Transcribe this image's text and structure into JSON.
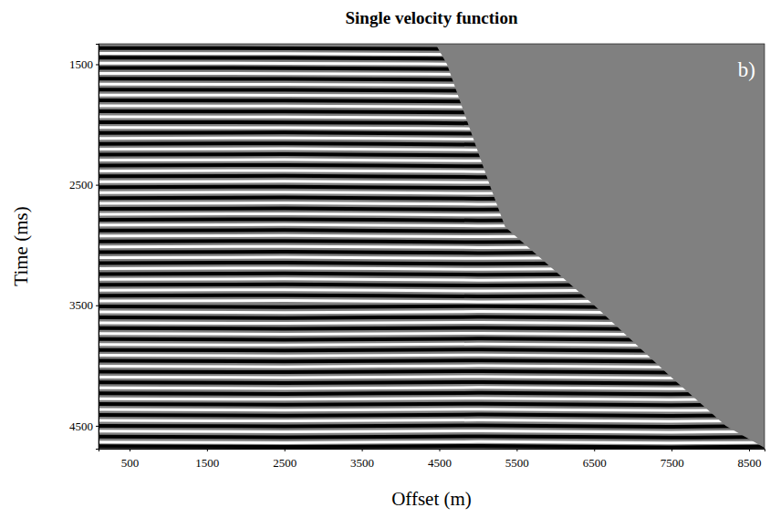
{
  "chart_data": {
    "type": "seismic_gather",
    "title": "Single velocity function",
    "x_label": "Offset (m)",
    "y_label": "Time (ms)",
    "annotations": [
      {
        "text": "b)"
      }
    ],
    "xlim": [
      100,
      8700
    ],
    "ylim": [
      1330,
      4690
    ],
    "xticks": [
      500,
      1500,
      2500,
      3500,
      4500,
      5500,
      6500,
      7500,
      8500
    ],
    "yticks": [
      1500,
      2500,
      3500,
      4500
    ],
    "x": [
      100,
      2500,
      5000,
      7500,
      8700
    ],
    "mute": {
      "color": "#808080",
      "x": [
        4450,
        4600,
        5150,
        5350,
        6500,
        7500,
        8200,
        8720
      ],
      "values": [
        1330,
        1500,
        2500,
        2850,
        3500,
        4100,
        4500,
        4690
      ]
    },
    "series": [
      {
        "color": "#000000",
        "values": [
          1365,
          1367,
          1375,
          1387,
          1395
        ]
      },
      {
        "color": "#ffffff",
        "values": [
          1410,
          1412,
          1420,
          1432,
          1440
        ]
      },
      {
        "color": "#000000",
        "values": [
          1445,
          1447,
          1455,
          1467,
          1475
        ]
      },
      {
        "color": "#ffffff",
        "values": [
          1490,
          1492,
          1500,
          1512,
          1520
        ]
      },
      {
        "color": "#000000",
        "values": [
          1530,
          1532,
          1540,
          1552,
          1560
        ]
      },
      {
        "color": "#ffffff",
        "values": [
          1575,
          1577,
          1585,
          1597,
          1605
        ]
      },
      {
        "color": "#000000",
        "values": [
          1620,
          1622,
          1630,
          1642,
          1650
        ]
      },
      {
        "color": "#ffffff",
        "values": [
          1665,
          1667,
          1675,
          1687,
          1695
        ]
      },
      {
        "color": "#000000",
        "values": [
          1710,
          1712,
          1720,
          1732,
          1740
        ]
      },
      {
        "color": "#ffffff",
        "values": [
          1755,
          1757,
          1765,
          1777,
          1785
        ]
      },
      {
        "color": "#000000",
        "values": [
          1800,
          1802,
          1810,
          1822,
          1830
        ]
      },
      {
        "color": "#ffffff",
        "values": [
          1845,
          1847,
          1855,
          1867,
          1875
        ]
      },
      {
        "color": "#000000",
        "values": [
          1890,
          1892,
          1900,
          1912,
          1920
        ]
      },
      {
        "color": "#ffffff",
        "values": [
          1935,
          1937,
          1945,
          1957,
          1965
        ]
      },
      {
        "color": "#000000",
        "values": [
          1980,
          1982,
          1990,
          2002,
          2010
        ]
      },
      {
        "color": "#ffffff",
        "values": [
          2025,
          2027,
          2035,
          2047,
          2055
        ]
      },
      {
        "color": "#000000",
        "values": [
          2070,
          2066,
          2076,
          2068,
          2074
        ]
      },
      {
        "color": "#ffffff",
        "values": [
          2115,
          2111,
          2121,
          2113,
          2119
        ]
      },
      {
        "color": "#000000",
        "values": [
          2160,
          2156,
          2166,
          2158,
          2164
        ]
      },
      {
        "color": "#ffffff",
        "values": [
          2205,
          2201,
          2211,
          2203,
          2209
        ]
      },
      {
        "color": "#000000",
        "values": [
          2250,
          2246,
          2256,
          2248,
          2254
        ]
      },
      {
        "color": "#ffffff",
        "values": [
          2295,
          2291,
          2301,
          2293,
          2299
        ]
      },
      {
        "color": "#000000",
        "values": [
          2340,
          2336,
          2346,
          2338,
          2344
        ]
      },
      {
        "color": "#ffffff",
        "values": [
          2385,
          2381,
          2391,
          2383,
          2389
        ]
      },
      {
        "color": "#000000",
        "values": [
          2430,
          2426,
          2436,
          2428,
          2434
        ]
      },
      {
        "color": "#ffffff",
        "values": [
          2475,
          2471,
          2481,
          2473,
          2479
        ]
      },
      {
        "color": "#000000",
        "values": [
          2520,
          2516,
          2526,
          2518,
          2524
        ]
      },
      {
        "color": "#ffffff",
        "values": [
          2565,
          2561,
          2571,
          2563,
          2569
        ]
      },
      {
        "color": "#000000",
        "values": [
          2610,
          2606,
          2616,
          2608,
          2614
        ]
      },
      {
        "color": "#ffffff",
        "values": [
          2655,
          2651,
          2661,
          2653,
          2659
        ]
      },
      {
        "color": "#000000",
        "values": [
          2700,
          2696,
          2706,
          2698,
          2704
        ]
      },
      {
        "color": "#ffffff",
        "values": [
          2745,
          2741,
          2751,
          2743,
          2749
        ]
      },
      {
        "color": "#000000",
        "values": [
          2790,
          2786,
          2796,
          2788,
          2794
        ]
      },
      {
        "color": "#ffffff",
        "values": [
          2835,
          2831,
          2841,
          2833,
          2839
        ]
      },
      {
        "color": "#000000",
        "values": [
          2880,
          2876,
          2886,
          2878,
          2884
        ]
      },
      {
        "color": "#ffffff",
        "values": [
          2925,
          2921,
          2931,
          2923,
          2929
        ]
      },
      {
        "color": "#000000",
        "values": [
          2970,
          2966,
          2976,
          2968,
          2974
        ]
      },
      {
        "color": "#ffffff",
        "values": [
          3015,
          3011,
          3021,
          3013,
          3019
        ]
      },
      {
        "color": "#000000",
        "values": [
          3060,
          3056,
          3066,
          3058,
          3064
        ]
      },
      {
        "color": "#ffffff",
        "values": [
          3105,
          3101,
          3111,
          3103,
          3109
        ]
      },
      {
        "color": "#000000",
        "values": [
          3150,
          3146,
          3156,
          3148,
          3154
        ]
      },
      {
        "color": "#ffffff",
        "values": [
          3195,
          3191,
          3201,
          3193,
          3199
        ]
      },
      {
        "color": "#000000",
        "values": [
          3240,
          3236,
          3246,
          3238,
          3244
        ]
      },
      {
        "color": "#ffffff",
        "values": [
          3285,
          3281,
          3291,
          3283,
          3289
        ]
      },
      {
        "color": "#000000",
        "values": [
          3330,
          3326,
          3336,
          3328,
          3334
        ]
      },
      {
        "color": "#ffffff",
        "values": [
          3375,
          3371,
          3381,
          3373,
          3379
        ]
      },
      {
        "color": "#000000",
        "values": [
          3420,
          3416,
          3426,
          3418,
          3424
        ]
      },
      {
        "color": "#ffffff",
        "values": [
          3465,
          3461,
          3471,
          3463,
          3469
        ]
      },
      {
        "color": "#000000",
        "values": [
          3510,
          3515,
          3507,
          3518,
          3512
        ]
      },
      {
        "color": "#ffffff",
        "values": [
          3555,
          3560,
          3552,
          3563,
          3557
        ]
      },
      {
        "color": "#000000",
        "values": [
          3600,
          3605,
          3597,
          3608,
          3602
        ]
      },
      {
        "color": "#ffffff",
        "values": [
          3645,
          3650,
          3642,
          3653,
          3647
        ]
      },
      {
        "color": "#000000",
        "values": [
          3690,
          3695,
          3687,
          3698,
          3692
        ]
      },
      {
        "color": "#ffffff",
        "values": [
          3735,
          3740,
          3732,
          3743,
          3737
        ]
      },
      {
        "color": "#000000",
        "values": [
          3780,
          3785,
          3777,
          3788,
          3782
        ]
      },
      {
        "color": "#ffffff",
        "values": [
          3825,
          3830,
          3822,
          3833,
          3827
        ]
      },
      {
        "color": "#000000",
        "values": [
          3870,
          3875,
          3867,
          3878,
          3872
        ]
      },
      {
        "color": "#ffffff",
        "values": [
          3915,
          3920,
          3912,
          3923,
          3917
        ]
      },
      {
        "color": "#000000",
        "values": [
          3960,
          3965,
          3957,
          3968,
          3962
        ]
      },
      {
        "color": "#ffffff",
        "values": [
          4005,
          4010,
          4002,
          4013,
          4007
        ]
      },
      {
        "color": "#000000",
        "values": [
          4050,
          4055,
          4047,
          4058,
          4052
        ]
      },
      {
        "color": "#ffffff",
        "values": [
          4095,
          4100,
          4092,
          4103,
          4097
        ]
      },
      {
        "color": "#000000",
        "values": [
          4140,
          4145,
          4137,
          4148,
          4142
        ]
      },
      {
        "color": "#ffffff",
        "values": [
          4185,
          4190,
          4182,
          4193,
          4187
        ]
      },
      {
        "color": "#000000",
        "values": [
          4230,
          4235,
          4227,
          4238,
          4232
        ]
      },
      {
        "color": "#ffffff",
        "values": [
          4275,
          4280,
          4272,
          4283,
          4277
        ]
      },
      {
        "color": "#000000",
        "values": [
          4320,
          4325,
          4317,
          4328,
          4322
        ]
      },
      {
        "color": "#ffffff",
        "values": [
          4365,
          4370,
          4362,
          4373,
          4367
        ]
      },
      {
        "color": "#000000",
        "values": [
          4410,
          4415,
          4407,
          4418,
          4412
        ]
      },
      {
        "color": "#ffffff",
        "values": [
          4455,
          4460,
          4452,
          4463,
          4457
        ]
      },
      {
        "color": "#000000",
        "values": [
          4500,
          4505,
          4497,
          4508,
          4502
        ]
      },
      {
        "color": "#ffffff",
        "values": [
          4545,
          4550,
          4542,
          4553,
          4547
        ]
      },
      {
        "color": "#000000",
        "values": [
          4590,
          4595,
          4587,
          4598,
          4592
        ]
      },
      {
        "color": "#ffffff",
        "values": [
          4635,
          4640,
          4632,
          4643,
          4637
        ]
      },
      {
        "color": "#000000",
        "values": [
          4670,
          4675,
          4667,
          4678,
          4672
        ]
      }
    ]
  }
}
